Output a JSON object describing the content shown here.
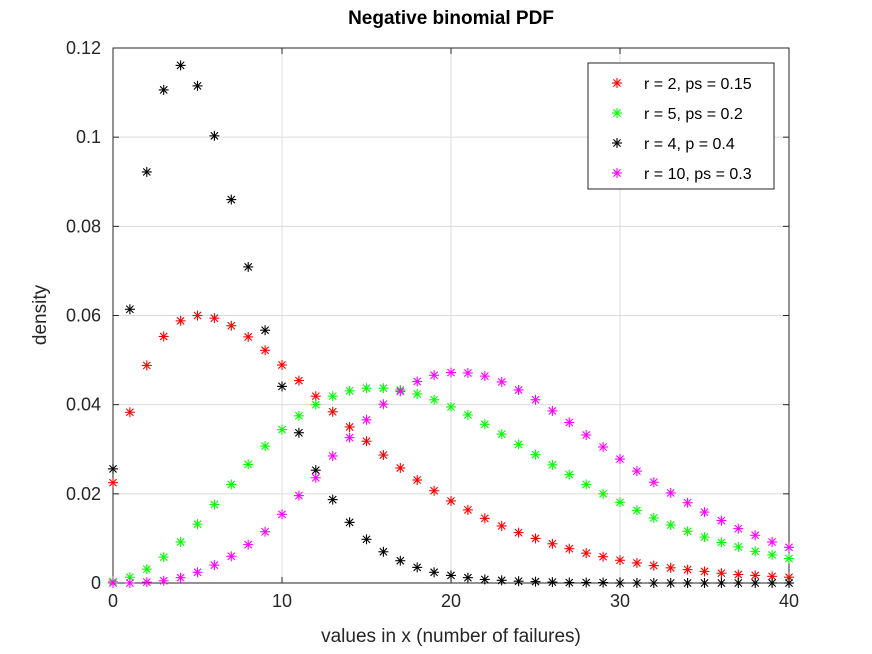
{
  "chart_data": {
    "type": "scatter",
    "title": "Negative binomial PDF",
    "xlabel": "values in x (number of failures)",
    "ylabel": "density",
    "xlim": [
      0,
      40
    ],
    "ylim": [
      0,
      0.12
    ],
    "xticks": [
      "0",
      "10",
      "20",
      "30",
      "40"
    ],
    "yticks": [
      "0",
      "0.02",
      "0.04",
      "0.06",
      "0.08",
      "0.1",
      "0.12"
    ],
    "grid": true,
    "legend_position": "top-right",
    "marker": "asterisk",
    "x": [
      0,
      1,
      2,
      3,
      4,
      5,
      6,
      7,
      8,
      9,
      10,
      11,
      12,
      13,
      14,
      15,
      16,
      17,
      18,
      19,
      20,
      21,
      22,
      23,
      24,
      25,
      26,
      27,
      28,
      29,
      30,
      31,
      32,
      33,
      34,
      35,
      36,
      37,
      38,
      39,
      40
    ],
    "series": [
      {
        "name": "r = 2, ps = 0.15",
        "color": "#ff0000",
        "values": [
          0.0225,
          0.0383,
          0.0488,
          0.0553,
          0.0588,
          0.06,
          0.0594,
          0.0577,
          0.0552,
          0.0522,
          0.0489,
          0.0454,
          0.0419,
          0.0384,
          0.035,
          0.0318,
          0.0287,
          0.0258,
          0.0231,
          0.0207,
          0.0184,
          0.0164,
          0.0145,
          0.0128,
          0.0113,
          0.01,
          0.0088,
          0.0077,
          0.0067,
          0.0059,
          0.0051,
          0.0045,
          0.0039,
          0.0034,
          0.003,
          0.0026,
          0.0022,
          0.0019,
          0.0017,
          0.0015,
          0.0013
        ]
      },
      {
        "name": "r = 5, ps = 0.2",
        "color": "#00ff00",
        "values": [
          0.0003,
          0.0013,
          0.0031,
          0.0058,
          0.0092,
          0.0132,
          0.0176,
          0.0221,
          0.0266,
          0.0307,
          0.0344,
          0.0375,
          0.04,
          0.0419,
          0.0431,
          0.0437,
          0.0437,
          0.0433,
          0.0424,
          0.0411,
          0.0395,
          0.0377,
          0.0356,
          0.0334,
          0.0311,
          0.0288,
          0.0265,
          0.0243,
          0.0221,
          0.02,
          0.0181,
          0.0163,
          0.0146,
          0.013,
          0.0116,
          0.0103,
          0.0091,
          0.0081,
          0.0071,
          0.0063,
          0.0055
        ]
      },
      {
        "name": "r = 4, p = 0.4",
        "color": "#000000",
        "values": [
          0.0256,
          0.0614,
          0.0922,
          0.1106,
          0.1161,
          0.1115,
          0.1003,
          0.086,
          0.0709,
          0.0567,
          0.0441,
          0.0337,
          0.0253,
          0.0187,
          0.0136,
          0.0098,
          0.007,
          0.005,
          0.0035,
          0.0024,
          0.0017,
          0.0012,
          0.0008,
          0.0006,
          0.0004,
          0.0003,
          0.0002,
          0.0001,
          0.0001,
          0.0001,
          0.0,
          0.0,
          0.0,
          0.0,
          0.0,
          0.0,
          0.0,
          0.0,
          0.0,
          0.0,
          0.0
        ]
      },
      {
        "name": "r = 10, ps = 0.3",
        "color": "#ff00ff",
        "values": [
          0.0,
          0.0,
          0.0002,
          0.0005,
          0.0012,
          0.0024,
          0.004,
          0.006,
          0.0086,
          0.0115,
          0.0154,
          0.0196,
          0.0236,
          0.0285,
          0.0326,
          0.0366,
          0.0401,
          0.043,
          0.0452,
          0.0466,
          0.0472,
          0.0471,
          0.0464,
          0.0451,
          0.0433,
          0.0411,
          0.0386,
          0.036,
          0.0332,
          0.0305,
          0.0278,
          0.0251,
          0.0226,
          0.0202,
          0.018,
          0.0159,
          0.014,
          0.0122,
          0.0107,
          0.0092,
          0.008
        ]
      }
    ]
  }
}
